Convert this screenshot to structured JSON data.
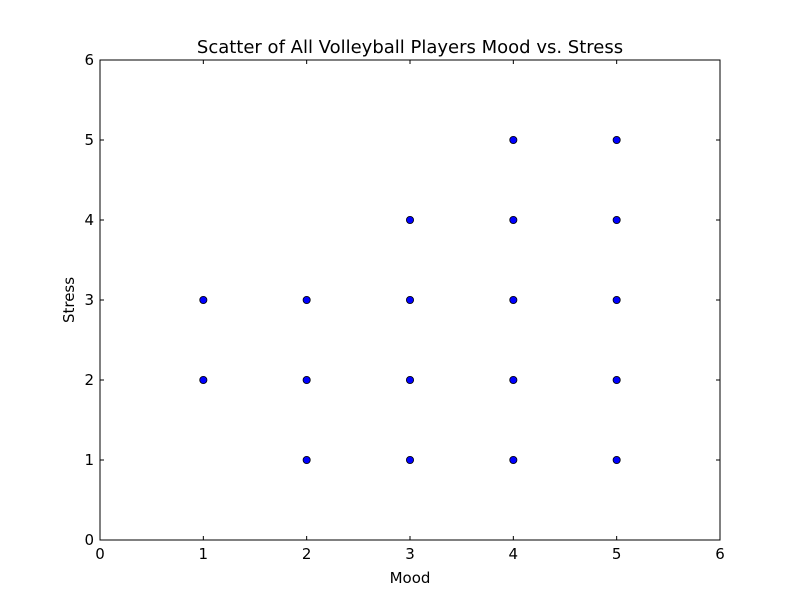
{
  "chart_data": {
    "type": "scatter",
    "title": "Scatter of All Volleyball Players Mood vs. Stress",
    "xlabel": "Mood",
    "ylabel": "Stress",
    "xlim": [
      0,
      6
    ],
    "ylim": [
      0,
      6
    ],
    "xticks": [
      0,
      1,
      2,
      3,
      4,
      5,
      6
    ],
    "yticks": [
      0,
      1,
      2,
      3,
      4,
      5,
      6
    ],
    "grid": false,
    "marker_color": "#0000ff",
    "x": [
      1,
      1,
      2,
      2,
      2,
      3,
      3,
      3,
      3,
      4,
      4,
      4,
      4,
      4,
      5,
      5,
      5,
      5,
      5
    ],
    "y": [
      2,
      3,
      1,
      2,
      3,
      1,
      2,
      3,
      4,
      1,
      2,
      3,
      4,
      5,
      1,
      2,
      3,
      4,
      5
    ]
  }
}
